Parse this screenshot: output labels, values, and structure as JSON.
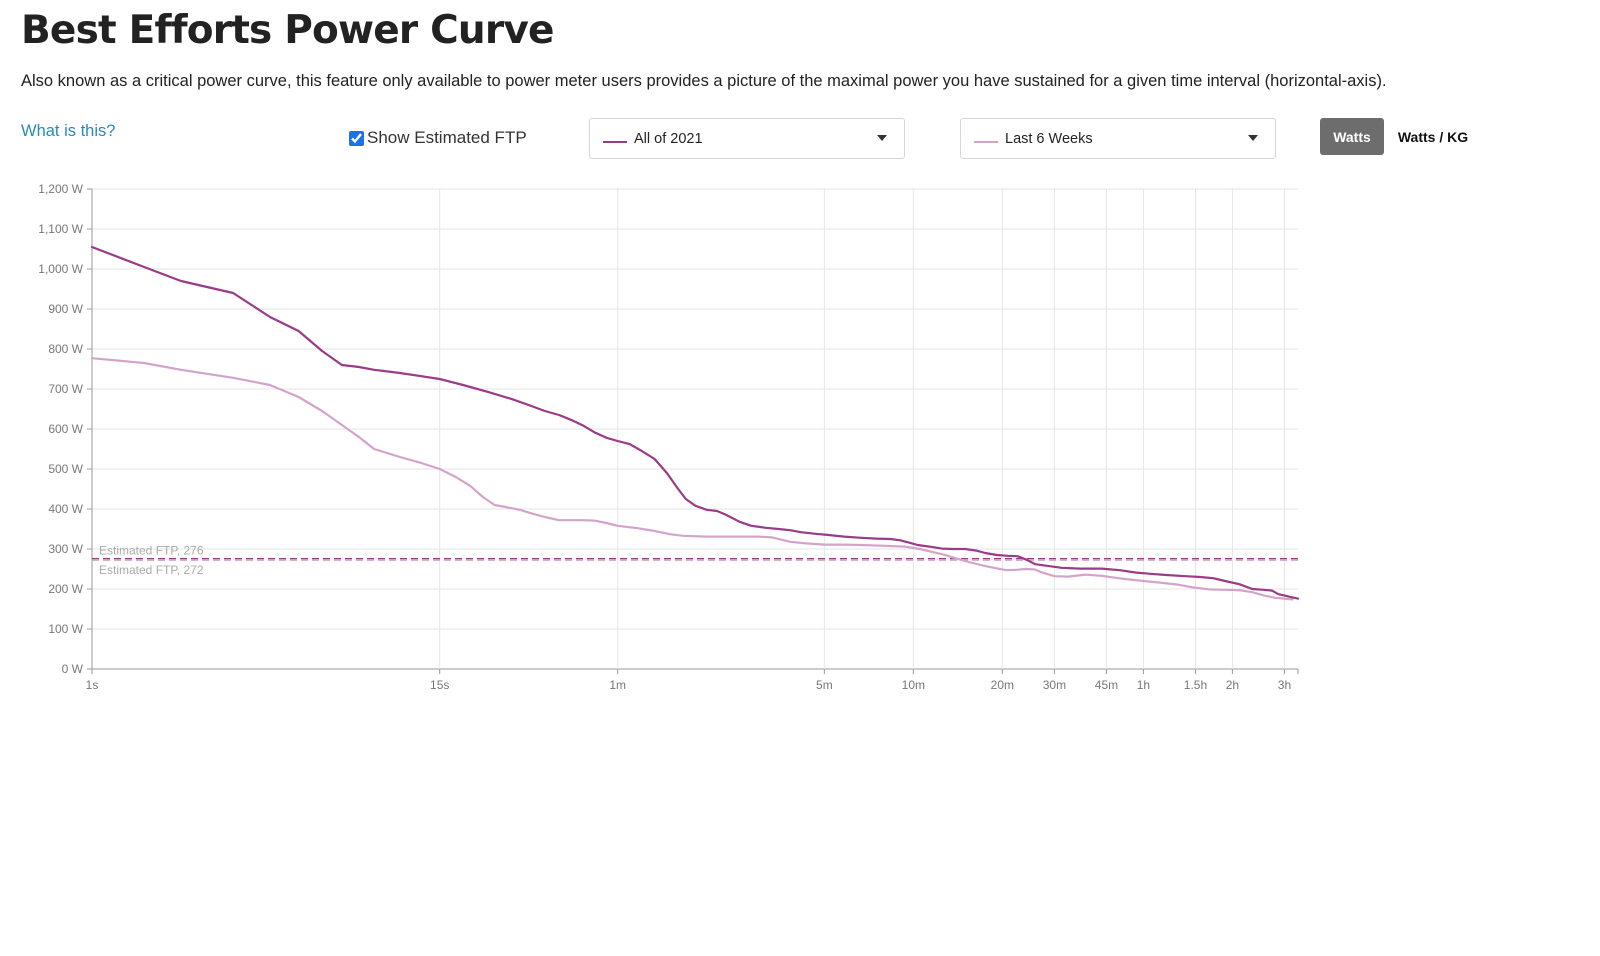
{
  "header": {
    "title": "Best Efforts Power Curve",
    "description": "Also known as a critical power curve, this feature only available to power meter users provides a picture of the maximal power you have sustained for a given time interval (horizontal-axis).",
    "help_link": "What is this?"
  },
  "controls": {
    "show_ftp_label": "Show Estimated FTP",
    "show_ftp_checked": true,
    "primary_range": {
      "label": "All of 2021",
      "color": "#9b3a87"
    },
    "secondary_range": {
      "label": "Last 6 Weeks",
      "color": "#d4a3ca"
    },
    "units": {
      "watts_label": "Watts",
      "watts_kg_label": "Watts / KG",
      "selected": "Watts"
    }
  },
  "chart_data": {
    "type": "line",
    "x_scale": "log",
    "x_unit": "seconds",
    "xlim": [
      1,
      12000
    ],
    "ylim": [
      0,
      1200
    ],
    "grid": true,
    "y_ticks": [
      0,
      100,
      200,
      300,
      400,
      500,
      600,
      700,
      800,
      900,
      1000,
      1100,
      1200
    ],
    "y_tick_labels": [
      "0 W",
      "100 W",
      "200 W",
      "300 W",
      "400 W",
      "500 W",
      "600 W",
      "700 W",
      "800 W",
      "900 W",
      "1,000 W",
      "1,100 W",
      "1,200 W"
    ],
    "x_ticks": [
      1,
      15,
      60,
      300,
      600,
      1200,
      1800,
      2700,
      3600,
      5400,
      7200,
      10800
    ],
    "x_tick_labels": [
      "1s",
      "15s",
      "1m",
      "5m",
      "10m",
      "20m",
      "30m",
      "45m",
      "1h",
      "1.5h",
      "2h",
      "3h"
    ],
    "series": [
      {
        "name": "All of 2021",
        "color": "#9b3a87",
        "points": [
          [
            1,
            1055
          ],
          [
            1.5,
            1005
          ],
          [
            2,
            970
          ],
          [
            3,
            940
          ],
          [
            4,
            880
          ],
          [
            5,
            845
          ],
          [
            6,
            795
          ],
          [
            7,
            760
          ],
          [
            8,
            755
          ],
          [
            9,
            748
          ],
          [
            11,
            740
          ],
          [
            13,
            732
          ],
          [
            15,
            725
          ],
          [
            18,
            710
          ],
          [
            22,
            692
          ],
          [
            26,
            676
          ],
          [
            30,
            660
          ],
          [
            34,
            645
          ],
          [
            38,
            635
          ],
          [
            42,
            622
          ],
          [
            46,
            608
          ],
          [
            50,
            592
          ],
          [
            55,
            578
          ],
          [
            60,
            570
          ],
          [
            66,
            562
          ],
          [
            72,
            546
          ],
          [
            80,
            525
          ],
          [
            88,
            490
          ],
          [
            95,
            455
          ],
          [
            102,
            425
          ],
          [
            110,
            408
          ],
          [
            120,
            398
          ],
          [
            130,
            395
          ],
          [
            140,
            385
          ],
          [
            155,
            368
          ],
          [
            170,
            358
          ],
          [
            190,
            353
          ],
          [
            210,
            350
          ],
          [
            230,
            347
          ],
          [
            250,
            342
          ],
          [
            280,
            338
          ],
          [
            310,
            335
          ],
          [
            350,
            331
          ],
          [
            400,
            328
          ],
          [
            450,
            326
          ],
          [
            500,
            325
          ],
          [
            540,
            322
          ],
          [
            580,
            316
          ],
          [
            620,
            310
          ],
          [
            680,
            306
          ],
          [
            750,
            301
          ],
          [
            820,
            300
          ],
          [
            900,
            300
          ],
          [
            980,
            296
          ],
          [
            1050,
            290
          ],
          [
            1150,
            285
          ],
          [
            1250,
            283
          ],
          [
            1350,
            282
          ],
          [
            1450,
            273
          ],
          [
            1550,
            262
          ],
          [
            1700,
            258
          ],
          [
            1900,
            253
          ],
          [
            2200,
            251
          ],
          [
            2600,
            251
          ],
          [
            3000,
            247
          ],
          [
            3400,
            241
          ],
          [
            3800,
            238
          ],
          [
            4300,
            235
          ],
          [
            5000,
            232
          ],
          [
            5600,
            230
          ],
          [
            6200,
            227
          ],
          [
            6800,
            220
          ],
          [
            7600,
            212
          ],
          [
            8400,
            200
          ],
          [
            9200,
            198
          ],
          [
            9800,
            196
          ],
          [
            10300,
            187
          ],
          [
            10900,
            183
          ],
          [
            11500,
            179
          ],
          [
            12000,
            176
          ]
        ]
      },
      {
        "name": "Last 6 Weeks",
        "color": "#d4a3ca",
        "points": [
          [
            1,
            777
          ],
          [
            1.5,
            765
          ],
          [
            2,
            748
          ],
          [
            3,
            728
          ],
          [
            4,
            710
          ],
          [
            5,
            680
          ],
          [
            6,
            645
          ],
          [
            7,
            610
          ],
          [
            8,
            580
          ],
          [
            9,
            550
          ],
          [
            11,
            530
          ],
          [
            13,
            515
          ],
          [
            15,
            500
          ],
          [
            17,
            480
          ],
          [
            19,
            458
          ],
          [
            21,
            430
          ],
          [
            23,
            410
          ],
          [
            25,
            405
          ],
          [
            28,
            398
          ],
          [
            31,
            388
          ],
          [
            34,
            380
          ],
          [
            38,
            372
          ],
          [
            42,
            372
          ],
          [
            46,
            372
          ],
          [
            50,
            371
          ],
          [
            55,
            365
          ],
          [
            60,
            358
          ],
          [
            70,
            352
          ],
          [
            80,
            345
          ],
          [
            90,
            337
          ],
          [
            100,
            333
          ],
          [
            120,
            331
          ],
          [
            150,
            331
          ],
          [
            180,
            331
          ],
          [
            200,
            329
          ],
          [
            230,
            318
          ],
          [
            260,
            314
          ],
          [
            300,
            311
          ],
          [
            350,
            311
          ],
          [
            400,
            310
          ],
          [
            480,
            308
          ],
          [
            560,
            306
          ],
          [
            630,
            300
          ],
          [
            700,
            292
          ],
          [
            760,
            286
          ],
          [
            840,
            276
          ],
          [
            940,
            266
          ],
          [
            1040,
            258
          ],
          [
            1140,
            252
          ],
          [
            1240,
            247
          ],
          [
            1340,
            248
          ],
          [
            1440,
            250
          ],
          [
            1540,
            249
          ],
          [
            1640,
            241
          ],
          [
            1800,
            232
          ],
          [
            2000,
            231
          ],
          [
            2300,
            236
          ],
          [
            2600,
            233
          ],
          [
            2900,
            228
          ],
          [
            3200,
            224
          ],
          [
            3600,
            220
          ],
          [
            4100,
            216
          ],
          [
            4700,
            211
          ],
          [
            5300,
            204
          ],
          [
            6000,
            199
          ],
          [
            6800,
            198
          ],
          [
            7600,
            197
          ],
          [
            8400,
            192
          ],
          [
            9200,
            184
          ],
          [
            10000,
            178
          ],
          [
            10800,
            176
          ],
          [
            11500,
            174
          ]
        ]
      }
    ],
    "ftp_lines": [
      {
        "label": "Estimated FTP, 276",
        "value": 276,
        "color": "#9b3a87"
      },
      {
        "label": "Estimated FTP, 272",
        "value": 272,
        "color": "#d4a3ca"
      }
    ]
  }
}
